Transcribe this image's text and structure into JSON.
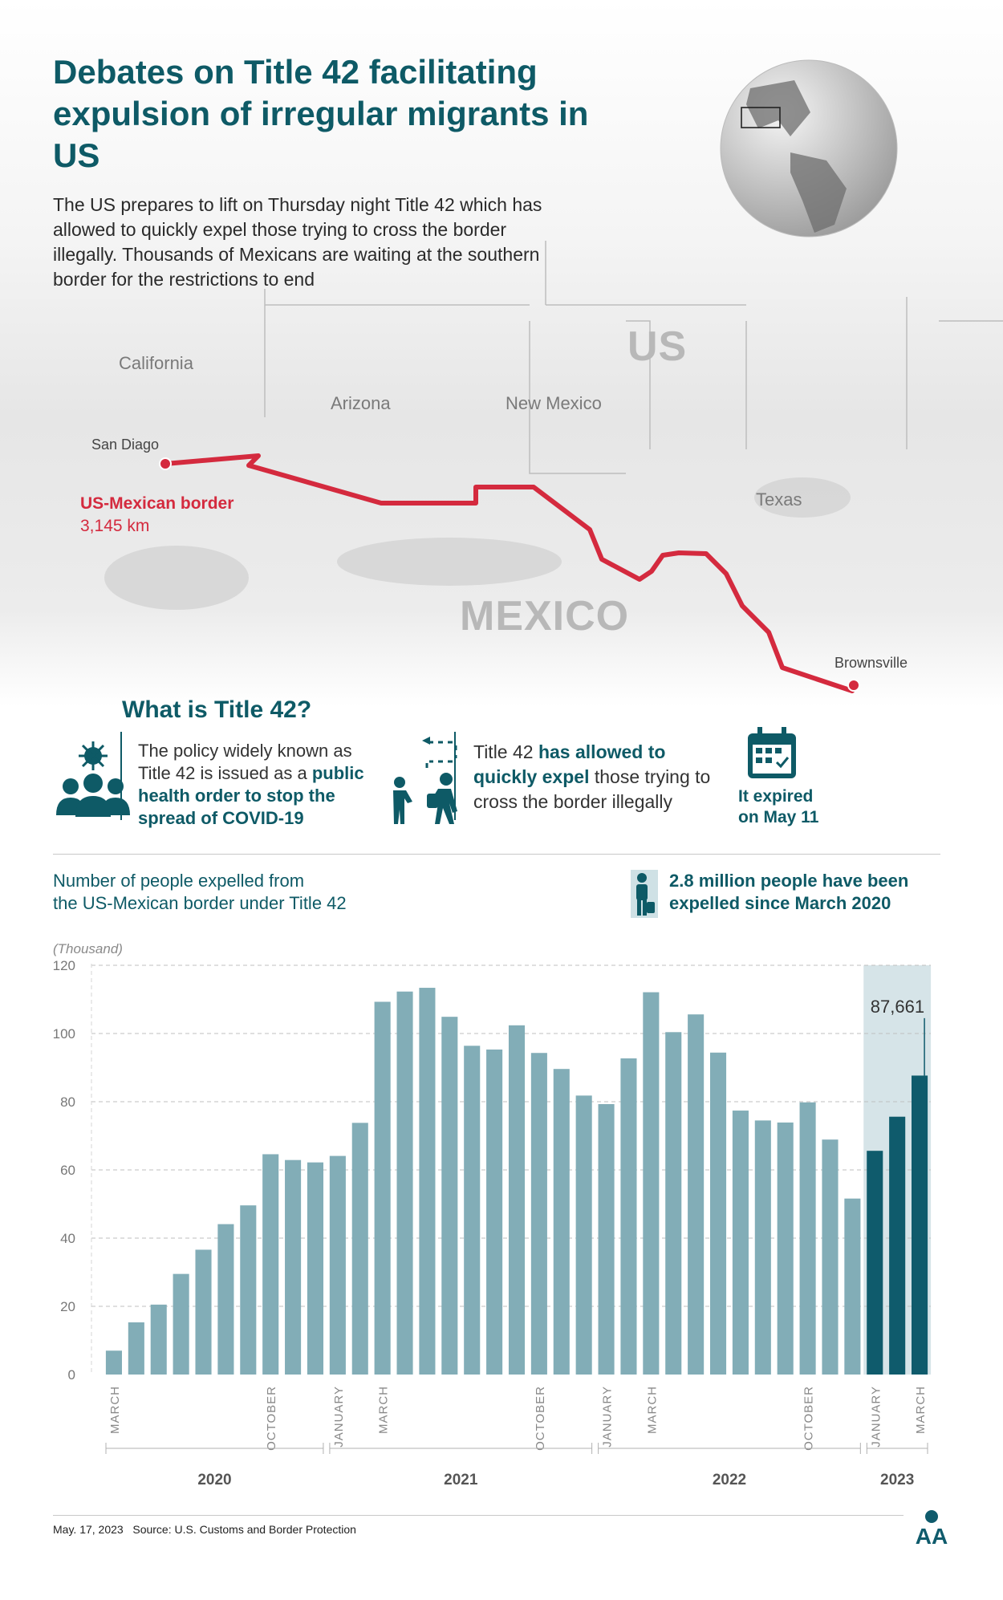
{
  "header": {
    "title": "Debates on Title 42 facilitating expulsion of irregular migrants in US",
    "intro": "The US prepares to lift on Thursday night Title 42 which has allowed to quickly expel those trying to cross the border illegally. Thousands of Mexicans are waiting at the southern border for the restrictions to end"
  },
  "map": {
    "country_us": "US",
    "country_mexico": "MEXICO",
    "states": {
      "california": "California",
      "arizona": "Arizona",
      "new_mexico": "New Mexico",
      "texas": "Texas"
    },
    "cities": {
      "west": "San Diago",
      "east": "Brownsville"
    },
    "border_label": "US-Mexican border",
    "border_length": "3,145 km",
    "border_color": "#d42a3e"
  },
  "info": {
    "section_title": "What is Title 42?",
    "text1_plain": "The policy widely known as Title 42 is issued as a",
    "text1_bold": "public health order to stop the spread of COVID-19",
    "text2_pre": "Title 42",
    "text2_bold": "has allowed to quickly expel",
    "text2_post": "those trying to cross the border illegally",
    "expired_line1": "It expired",
    "expired_line2": "on May 11"
  },
  "chart_header": {
    "subtitle_line1": "Number of people expelled from",
    "subtitle_line2": "the US-Mexican border under Title 42",
    "stat_line1": "2.8 million people have been",
    "stat_line2": "expelled since March 2020"
  },
  "chart_data": {
    "type": "bar",
    "unit_label": "(Thousand)",
    "ylim": [
      0,
      120
    ],
    "yticks": [
      0,
      20,
      40,
      60,
      80,
      100,
      120
    ],
    "values": [
      7,
      15.3,
      20.5,
      29.5,
      36.6,
      44.1,
      49.6,
      64.6,
      62.9,
      62.2,
      64.1,
      73.8,
      109.3,
      112.3,
      113.4,
      104.9,
      96.4,
      95.3,
      102.4,
      94.3,
      89.6,
      81.8,
      79.3,
      92.7,
      112.1,
      100.4,
      105.6,
      94.4,
      77.4,
      74.5,
      73.9,
      79.8,
      68.9,
      51.6,
      65.6,
      75.6,
      87.661
    ],
    "highlight_from_index": 34,
    "highlight_color": "#0f5b6c",
    "bar_color": "#82adb7",
    "callout": {
      "index": 36,
      "text": "87,661"
    },
    "month_labels": [
      {
        "index": 0,
        "text": "MARCH"
      },
      {
        "index": 7,
        "text": "OCTOBER"
      },
      {
        "index": 10,
        "text": "JANUARY"
      },
      {
        "index": 12,
        "text": "MARCH"
      },
      {
        "index": 19,
        "text": "OCTOBER"
      },
      {
        "index": 22,
        "text": "JANUARY"
      },
      {
        "index": 24,
        "text": "MARCH"
      },
      {
        "index": 31,
        "text": "OCTOBER"
      },
      {
        "index": 34,
        "text": "JANUARY"
      },
      {
        "index": 36,
        "text": "MARCH"
      }
    ],
    "year_groups": [
      {
        "label": "2020",
        "start": 0,
        "end": 9
      },
      {
        "label": "2021",
        "start": 10,
        "end": 21
      },
      {
        "label": "2022",
        "start": 22,
        "end": 33
      },
      {
        "label": "2023",
        "start": 34,
        "end": 36
      }
    ]
  },
  "footer": {
    "date": "May. 17, 2023",
    "source": "Source: U.S. Customs and Border Protection",
    "logo_text": "AA"
  }
}
